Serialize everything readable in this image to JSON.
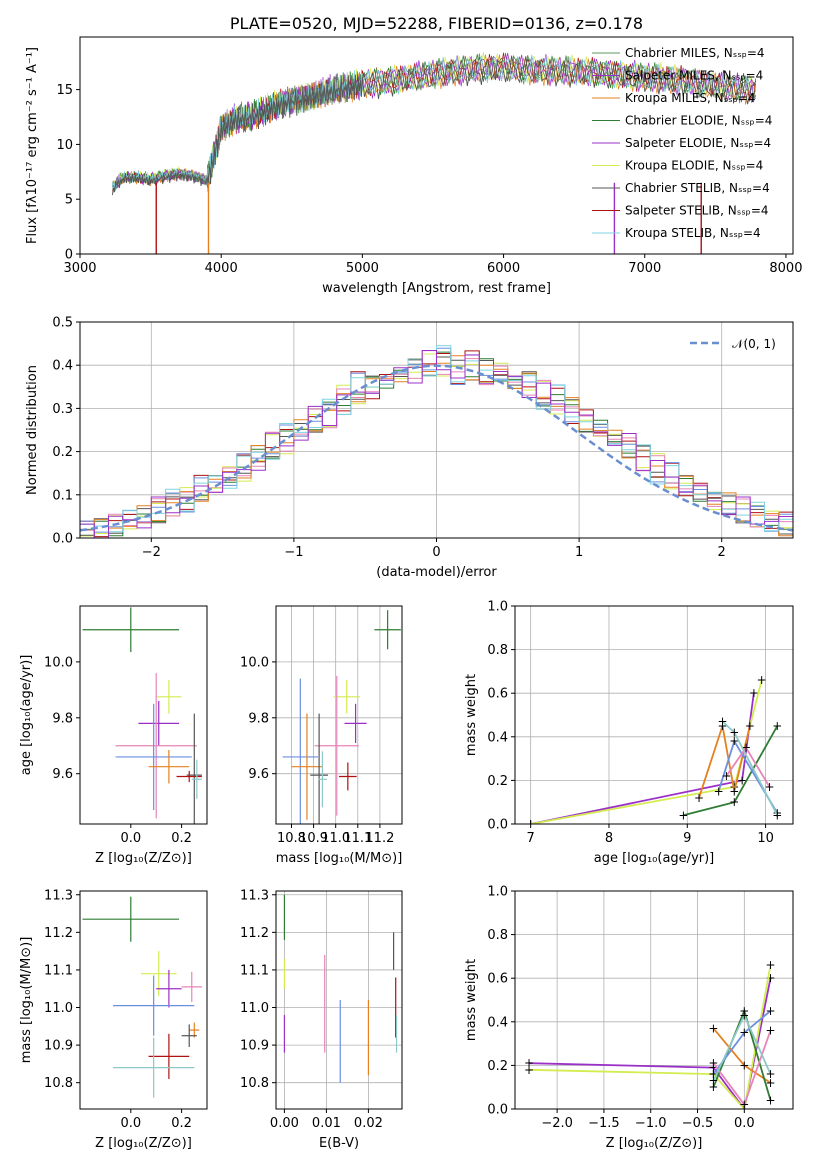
{
  "palette": [
    "#5c9a5c",
    "#9b30c8",
    "#e58020",
    "#2e7d32",
    "#9b30c8",
    "#d4ec50",
    "#555555",
    "#b01010",
    "#7dd3e0"
  ],
  "palette_extra": [
    "#6a8fe0",
    "#e884b8",
    "#8fc8c8"
  ],
  "chart_data": [
    {
      "id": "spectrum",
      "type": "line",
      "title": "PLATE=0520, MJD=52288, FIBERID=0136, z=0.178",
      "xlabel": "wavelength [Angstrom, rest frame]",
      "ylabel": "Flux [fλ10⁻¹⁷ erg cm⁻² s⁻¹ A⁻¹]",
      "xlim": [
        3000,
        8050
      ],
      "ylim": [
        0,
        19.8
      ],
      "xticks": [
        "3000",
        "4000",
        "5000",
        "6000",
        "7000",
        "8000"
      ],
      "yticks": [
        "0",
        "5",
        "10",
        "15"
      ],
      "grid": false,
      "legend_position": "right",
      "legend": [
        "Chabrier MILES, Nₛₛₚ=4",
        "Salpeter MILES, Nₛₛₚ=4",
        "Kroupa MILES, Nₛₛₚ=4",
        "Chabrier ELODIE, Nₛₛₚ=4",
        "Salpeter ELODIE, Nₛₛₚ=4",
        "Kroupa ELODIE, Nₛₛₚ=4",
        "Chabrier STELIB, Nₛₛₚ=4",
        "Salpeter STELIB, Nₛₛₚ=4",
        "Kroupa STELIB, Nₛₛₚ=4"
      ],
      "x": [
        3230,
        3300,
        3400,
        3500,
        3600,
        3700,
        3800,
        3900,
        3950,
        4000,
        4100,
        4200,
        4300,
        4400,
        4500,
        4600,
        4700,
        4800,
        4900,
        5000,
        5200,
        5400,
        5600,
        5800,
        6000,
        6200,
        6400,
        6600,
        6800,
        7000,
        7200,
        7400,
        7600,
        7800
      ],
      "y": [
        6.0,
        7.0,
        7.0,
        6.8,
        7.1,
        7.3,
        7.1,
        6.7,
        9.0,
        11.5,
        12.3,
        12.5,
        13.0,
        13.6,
        14.0,
        14.3,
        14.6,
        15.0,
        15.2,
        15.5,
        15.8,
        16.2,
        16.6,
        16.9,
        17.0,
        16.8,
        16.7,
        16.6,
        16.4,
        16.1,
        15.9,
        15.6,
        15.2,
        14.9
      ]
    },
    {
      "id": "residuals",
      "type": "bar",
      "xlabel": "(data-model)/error",
      "ylabel": "Normed distribution",
      "xlim": [
        -2.5,
        2.5
      ],
      "ylim": [
        0,
        0.5
      ],
      "xticks": [
        "−2",
        "−1",
        "0",
        "1",
        "2"
      ],
      "yticks": [
        "0.0",
        "0.1",
        "0.2",
        "0.3",
        "0.4",
        "0.5"
      ],
      "grid": true,
      "legend_position": "top-right",
      "legend": [
        "𝒩(0, 1)"
      ],
      "curve": "gaussian",
      "bin_width": 0.1,
      "bin_start": -2.5,
      "histograms": [
        [
          0.02,
          0.02,
          0.03,
          0.04,
          0.05,
          0.06,
          0.08,
          0.09,
          0.11,
          0.12,
          0.15,
          0.16,
          0.19,
          0.21,
          0.23,
          0.25,
          0.27,
          0.29,
          0.32,
          0.34,
          0.35,
          0.37,
          0.38,
          0.39,
          0.4,
          0.41,
          0.4,
          0.39,
          0.39,
          0.38,
          0.37,
          0.36,
          0.33,
          0.32,
          0.3,
          0.27,
          0.25,
          0.23,
          0.21,
          0.19,
          0.16,
          0.14,
          0.12,
          0.11,
          0.09,
          0.08,
          0.06,
          0.05,
          0.04,
          0.03
        ],
        [
          0.015,
          0.025,
          0.035,
          0.04,
          0.06,
          0.065,
          0.09,
          0.085,
          0.12,
          0.13,
          0.14,
          0.17,
          0.2,
          0.2,
          0.24,
          0.26,
          0.26,
          0.3,
          0.31,
          0.36,
          0.34,
          0.38,
          0.36,
          0.42,
          0.39,
          0.42,
          0.38,
          0.41,
          0.37,
          0.39,
          0.35,
          0.37,
          0.32,
          0.33,
          0.29,
          0.28,
          0.24,
          0.24,
          0.2,
          0.2,
          0.15,
          0.15,
          0.12,
          0.12,
          0.08,
          0.08,
          0.06,
          0.06,
          0.04,
          0.035
        ],
        [
          0.02,
          0.015,
          0.03,
          0.045,
          0.04,
          0.07,
          0.075,
          0.095,
          0.1,
          0.13,
          0.14,
          0.15,
          0.18,
          0.22,
          0.22,
          0.24,
          0.28,
          0.28,
          0.33,
          0.32,
          0.36,
          0.35,
          0.39,
          0.38,
          0.41,
          0.4,
          0.38,
          0.4,
          0.38,
          0.38,
          0.36,
          0.35,
          0.34,
          0.31,
          0.31,
          0.26,
          0.26,
          0.22,
          0.22,
          0.18,
          0.17,
          0.13,
          0.13,
          0.1,
          0.09,
          0.07,
          0.07,
          0.05,
          0.04,
          0.03
        ]
      ]
    },
    {
      "id": "z-age",
      "type": "scatter",
      "xlabel": "Z [log₁₀(Z/Z⊙)]",
      "ylabel": "age  [log₁₀(age/yr)]",
      "xlim": [
        -0.2,
        0.3
      ],
      "ylim": [
        9.42,
        10.2
      ],
      "xticks": [
        "0.0",
        "0.2"
      ],
      "yticks": [
        "9.6",
        "9.8",
        "10.0"
      ],
      "grid": false,
      "points": [
        {
          "x": 0.0,
          "y": 10.115,
          "xerr": 0.19,
          "yerr": 0.08
        },
        {
          "x": 0.15,
          "y": 9.875,
          "xerr": 0.05,
          "yerr": 0.06
        },
        {
          "x": 0.11,
          "y": 9.78,
          "xerr": 0.08,
          "yerr": 0.08
        },
        {
          "x": 0.1,
          "y": 9.7,
          "xerr": 0.16,
          "yerr": 0.26
        },
        {
          "x": 0.09,
          "y": 9.66,
          "xerr": 0.15,
          "yerr": 0.19
        },
        {
          "x": 0.15,
          "y": 9.625,
          "xerr": 0.08,
          "yerr": 0.06
        },
        {
          "x": 0.25,
          "y": 9.595,
          "xerr": 0.03,
          "yerr": 0.22
        },
        {
          "x": 0.23,
          "y": 9.59,
          "xerr": 0.05,
          "yerr": 0.02
        },
        {
          "x": 0.26,
          "y": 9.58,
          "xerr": 0.02,
          "yerr": 0.07
        }
      ]
    },
    {
      "id": "mass-age",
      "type": "scatter",
      "xlabel": "mass [log₁₀(M/M⊙)]",
      "ylabel": "",
      "xlim": [
        10.73,
        11.3
      ],
      "ylim": [
        9.42,
        10.2
      ],
      "xticks": [
        "10.8",
        "10.9",
        "11.0",
        "11.1",
        "11.2"
      ],
      "yticks": [
        "9.6",
        "9.8",
        "10.0"
      ],
      "grid": true,
      "points": [
        {
          "x": 11.235,
          "y": 10.115,
          "xerr": 0.06,
          "yerr": 0.07
        },
        {
          "x": 11.05,
          "y": 9.875,
          "xerr": 0.06,
          "yerr": 0.06
        },
        {
          "x": 11.09,
          "y": 9.78,
          "xerr": 0.05,
          "yerr": 0.07
        },
        {
          "x": 11.005,
          "y": 9.7,
          "xerr": 0.1,
          "yerr": 0.25
        },
        {
          "x": 10.84,
          "y": 9.66,
          "xerr": 0.08,
          "yerr": 0.28
        },
        {
          "x": 10.87,
          "y": 9.625,
          "xerr": 0.07,
          "yerr": 0.19
        },
        {
          "x": 10.925,
          "y": 9.595,
          "xerr": 0.04,
          "yerr": 0.22
        },
        {
          "x": 11.055,
          "y": 9.59,
          "xerr": 0.04,
          "yerr": 0.05
        },
        {
          "x": 10.94,
          "y": 9.58,
          "xerr": 0.02,
          "yerr": 0.1
        }
      ]
    },
    {
      "id": "age-weight",
      "type": "line",
      "xlabel": "age  [log₁₀(age/yr)]",
      "ylabel": "mass weight",
      "xlim": [
        6.8,
        10.35
      ],
      "ylim": [
        0,
        1.0
      ],
      "xticks": [
        "7",
        "8",
        "9",
        "10"
      ],
      "yticks": [
        "0.0",
        "0.2",
        "0.4",
        "0.6",
        "0.8",
        "1.0"
      ],
      "grid": true,
      "series": [
        {
          "values": [
            [
              7.0,
              0.0
            ],
            [
              9.7,
              0.2
            ],
            [
              9.85,
              0.6
            ]
          ]
        },
        {
          "values": [
            [
              7.0,
              0.0
            ],
            [
              9.6,
              0.17
            ],
            [
              9.95,
              0.66
            ]
          ]
        },
        {
          "values": [
            [
              9.15,
              0.12
            ],
            [
              9.45,
              0.45
            ],
            [
              9.6,
              0.15
            ],
            [
              9.8,
              0.45
            ]
          ]
        },
        {
          "values": [
            [
              8.95,
              0.04
            ],
            [
              9.6,
              0.1
            ],
            [
              10.15,
              0.45
            ]
          ]
        },
        {
          "values": [
            [
              9.4,
              0.15
            ],
            [
              9.6,
              0.38
            ],
            [
              10.15,
              0.05
            ]
          ]
        },
        {
          "values": [
            [
              9.5,
              0.22
            ],
            [
              9.75,
              0.35
            ],
            [
              10.05,
              0.17
            ]
          ]
        },
        {
          "values": [
            [
              9.45,
              0.47
            ],
            [
              9.6,
              0.42
            ],
            [
              10.15,
              0.04
            ]
          ]
        }
      ]
    },
    {
      "id": "z-mass",
      "type": "scatter",
      "xlabel": "Z [log₁₀(Z/Z⊙)]",
      "ylabel": "mass [log₁₀(M/M⊙)]",
      "xlim": [
        -0.2,
        0.3
      ],
      "ylim": [
        10.73,
        11.31
      ],
      "xticks": [
        "0.0",
        "0.2"
      ],
      "yticks": [
        "10.8",
        "10.9",
        "11.0",
        "11.1",
        "11.2",
        "11.3"
      ],
      "grid": false,
      "points": [
        {
          "x": 0.0,
          "y": 11.235,
          "xerr": 0.19,
          "yerr": 0.06
        },
        {
          "x": 0.11,
          "y": 11.09,
          "xerr": 0.07,
          "yerr": 0.06
        },
        {
          "x": 0.15,
          "y": 11.05,
          "xerr": 0.05,
          "yerr": 0.05
        },
        {
          "x": 0.24,
          "y": 11.055,
          "xerr": 0.04,
          "yerr": 0.04
        },
        {
          "x": 0.09,
          "y": 11.005,
          "xerr": 0.16,
          "yerr": 0.08
        },
        {
          "x": 0.25,
          "y": 10.94,
          "xerr": 0.02,
          "yerr": 0.02
        },
        {
          "x": 0.23,
          "y": 10.925,
          "xerr": 0.03,
          "yerr": 0.03
        },
        {
          "x": 0.15,
          "y": 10.87,
          "xerr": 0.08,
          "yerr": 0.06
        },
        {
          "x": 0.09,
          "y": 10.84,
          "xerr": 0.16,
          "yerr": 0.08
        }
      ]
    },
    {
      "id": "ebv-mass",
      "type": "scatter",
      "xlabel": "E(B-V)",
      "ylabel": "",
      "xlim": [
        -0.002,
        0.028
      ],
      "ylim": [
        10.73,
        11.31
      ],
      "xticks": [
        "0.00",
        "0.01",
        "0.02"
      ],
      "yticks": [
        "10.8",
        "10.9",
        "11.0",
        "11.1",
        "11.2",
        "11.3"
      ],
      "grid": true,
      "points": [
        {
          "x": 0.0,
          "y": 11.24,
          "xerr": 0,
          "yerr": 0.06
        },
        {
          "x": 0.0,
          "y": 11.09,
          "xerr": 0,
          "yerr": 0.04
        },
        {
          "x": 0.0,
          "y": 10.93,
          "xerr": 0,
          "yerr": 0.05
        },
        {
          "x": 0.0096,
          "y": 11.01,
          "xerr": 0,
          "yerr": 0.13
        },
        {
          "x": 0.0133,
          "y": 10.91,
          "xerr": 0,
          "yerr": 0.11
        },
        {
          "x": 0.02,
          "y": 10.92,
          "xerr": 0,
          "yerr": 0.1
        },
        {
          "x": 0.026,
          "y": 11.15,
          "xerr": 0,
          "yerr": 0.05
        },
        {
          "x": 0.0265,
          "y": 11.0,
          "xerr": 0,
          "yerr": 0.08
        },
        {
          "x": 0.0267,
          "y": 10.93,
          "xerr": 0,
          "yerr": 0.05
        }
      ]
    },
    {
      "id": "z-weight",
      "type": "line",
      "xlabel": "Z [log₁₀(Z/Z⊙)]",
      "ylabel": "mass weight",
      "xlim": [
        -2.45,
        0.52
      ],
      "ylim": [
        0,
        1.0
      ],
      "xticks": [
        "−2.0",
        "−1.5",
        "−1.0",
        "−0.5",
        "0.0"
      ],
      "yticks": [
        "0.0",
        "0.2",
        "0.4",
        "0.6",
        "0.8",
        "1.0"
      ],
      "grid": true,
      "series": [
        {
          "values": [
            [
              -2.3,
              0.21
            ],
            [
              -0.33,
              0.19
            ],
            [
              0.0,
              0.0
            ],
            [
              0.28,
              0.6
            ]
          ]
        },
        {
          "values": [
            [
              -2.3,
              0.18
            ],
            [
              -0.33,
              0.16
            ],
            [
              0.0,
              0.0
            ],
            [
              0.28,
              0.66
            ]
          ]
        },
        {
          "values": [
            [
              -0.33,
              0.37
            ],
            [
              0.0,
              0.2
            ],
            [
              0.28,
              0.12
            ]
          ]
        },
        {
          "values": [
            [
              -0.33,
              0.1
            ],
            [
              0.0,
              0.45
            ],
            [
              0.28,
              0.04
            ]
          ]
        },
        {
          "values": [
            [
              -0.33,
              0.16
            ],
            [
              0.0,
              0.35
            ],
            [
              0.28,
              0.45
            ]
          ]
        },
        {
          "values": [
            [
              -0.33,
              0.21
            ],
            [
              0.0,
              0.02
            ],
            [
              0.28,
              0.36
            ]
          ]
        },
        {
          "values": [
            [
              -0.33,
              0.13
            ],
            [
              0.0,
              0.43
            ],
            [
              0.28,
              0.16
            ]
          ]
        }
      ]
    }
  ]
}
